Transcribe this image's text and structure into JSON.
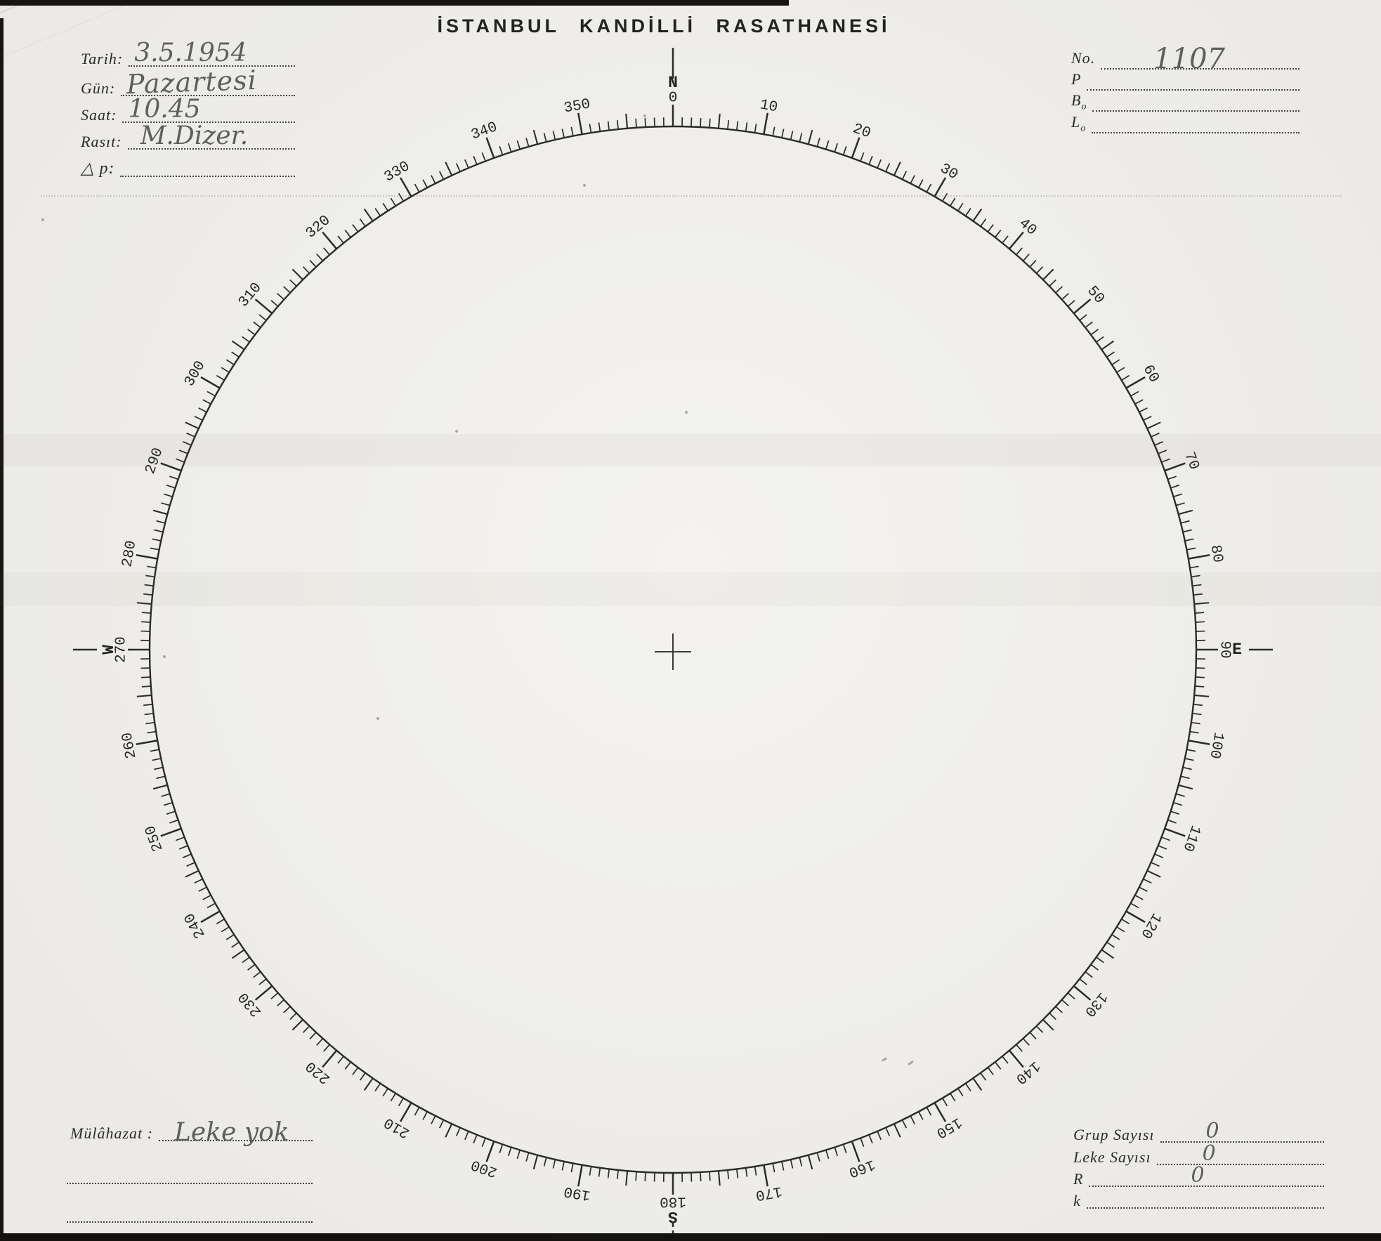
{
  "title": "İSTANBUL KANDİLLİ RASATHANESİ",
  "colors": {
    "ink": "#2b2b2b",
    "pencil": "#5e5e5e",
    "paper": "#f0efeb"
  },
  "header_left": {
    "fields": [
      {
        "label": "Tarih:",
        "value": "3.5.1954"
      },
      {
        "label": "Gün:",
        "value": "Pazartesi"
      },
      {
        "label": "Saat:",
        "value": "10.45"
      },
      {
        "label": "Rasıt:",
        "value": "M.Dizer."
      },
      {
        "label": "△ p:",
        "value": ""
      }
    ]
  },
  "header_right": {
    "fields": [
      {
        "label": "No.",
        "sub": "",
        "value": "1107"
      },
      {
        "label": "P",
        "sub": "",
        "value": ""
      },
      {
        "label": "B",
        "sub": "o",
        "value": ""
      },
      {
        "label": "L",
        "sub": "o",
        "value": ""
      }
    ]
  },
  "footer_left": {
    "fields": [
      {
        "label": "Mülâhazat :",
        "value": "Leke yok"
      },
      {
        "label": "",
        "value": ""
      },
      {
        "label": "",
        "value": ""
      }
    ]
  },
  "footer_right": {
    "fields": [
      {
        "label": "Grup Sayısı",
        "value": "0"
      },
      {
        "label": "Leke Sayısı",
        "value": "0"
      },
      {
        "label": "R",
        "value": "0"
      },
      {
        "label": "k",
        "value": ""
      }
    ]
  },
  "dial": {
    "degree_labels": [
      "0",
      "10",
      "20",
      "30",
      "40",
      "50",
      "60",
      "70",
      "80",
      "90",
      "100",
      "110",
      "120",
      "130",
      "140",
      "150",
      "160",
      "170",
      "180",
      "190",
      "200",
      "210",
      "220",
      "230",
      "240",
      "250",
      "260",
      "270",
      "280",
      "290",
      "300",
      "310",
      "320",
      "330",
      "340",
      "350"
    ],
    "compass": {
      "north": "N",
      "south": "S",
      "east": "E",
      "west": "W"
    },
    "scale": {
      "tick_step_deg": 1,
      "medium_tick_deg": 5,
      "major_tick_deg": 10,
      "label_step_deg": 10
    }
  }
}
